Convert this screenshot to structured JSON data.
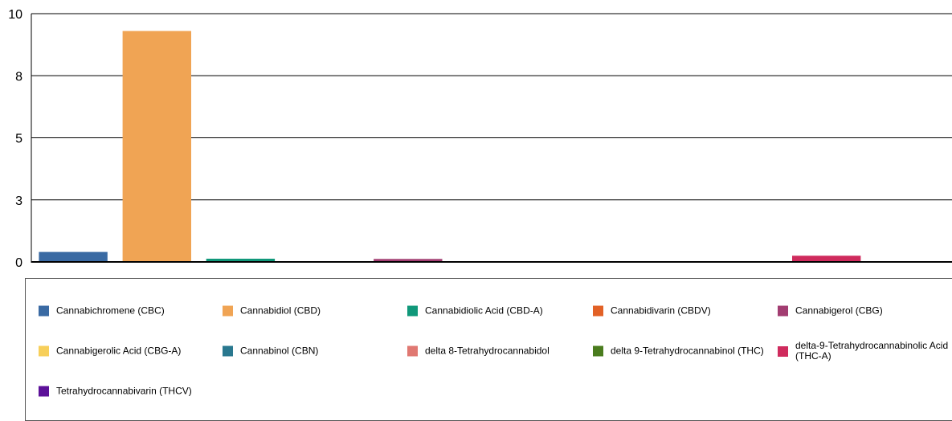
{
  "chart_data": {
    "type": "bar",
    "categories": [
      "Cannabichromene (CBC)",
      "Cannabidiol (CBD)",
      "Cannabidiolic Acid (CBD-A)",
      "Cannabidivarin (CBDV)",
      "Cannabigerol (CBG)",
      "Cannabigerolic Acid (CBG-A)",
      "Cannabinol (CBN)",
      "delta 8-Tetrahydrocannabidol",
      "delta 9-Tetrahydrocannabinol (THC)",
      "delta-9-Tetrahydrocannabinolic Acid (THC-A)",
      "Tetrahydrocannabivarin (THCV)"
    ],
    "values": [
      0.4,
      9.3,
      0.13,
      0,
      0.12,
      0,
      0,
      0,
      0,
      0.25,
      0
    ],
    "colors": [
      "#3a6aa3",
      "#f0a454",
      "#10987a",
      "#e26126",
      "#a23d71",
      "#f7cf5a",
      "#29788f",
      "#e07872",
      "#4a7c1e",
      "#cf2b5d",
      "#5c1199"
    ],
    "ylim": [
      0,
      10
    ],
    "yticks": [
      0,
      2.5,
      5,
      7.5,
      10
    ],
    "ytick_labels": [
      "0",
      "3",
      "5",
      "8",
      "10"
    ],
    "grid": true,
    "legend_position": "bottom",
    "title": "",
    "xlabel": "",
    "ylabel": ""
  }
}
